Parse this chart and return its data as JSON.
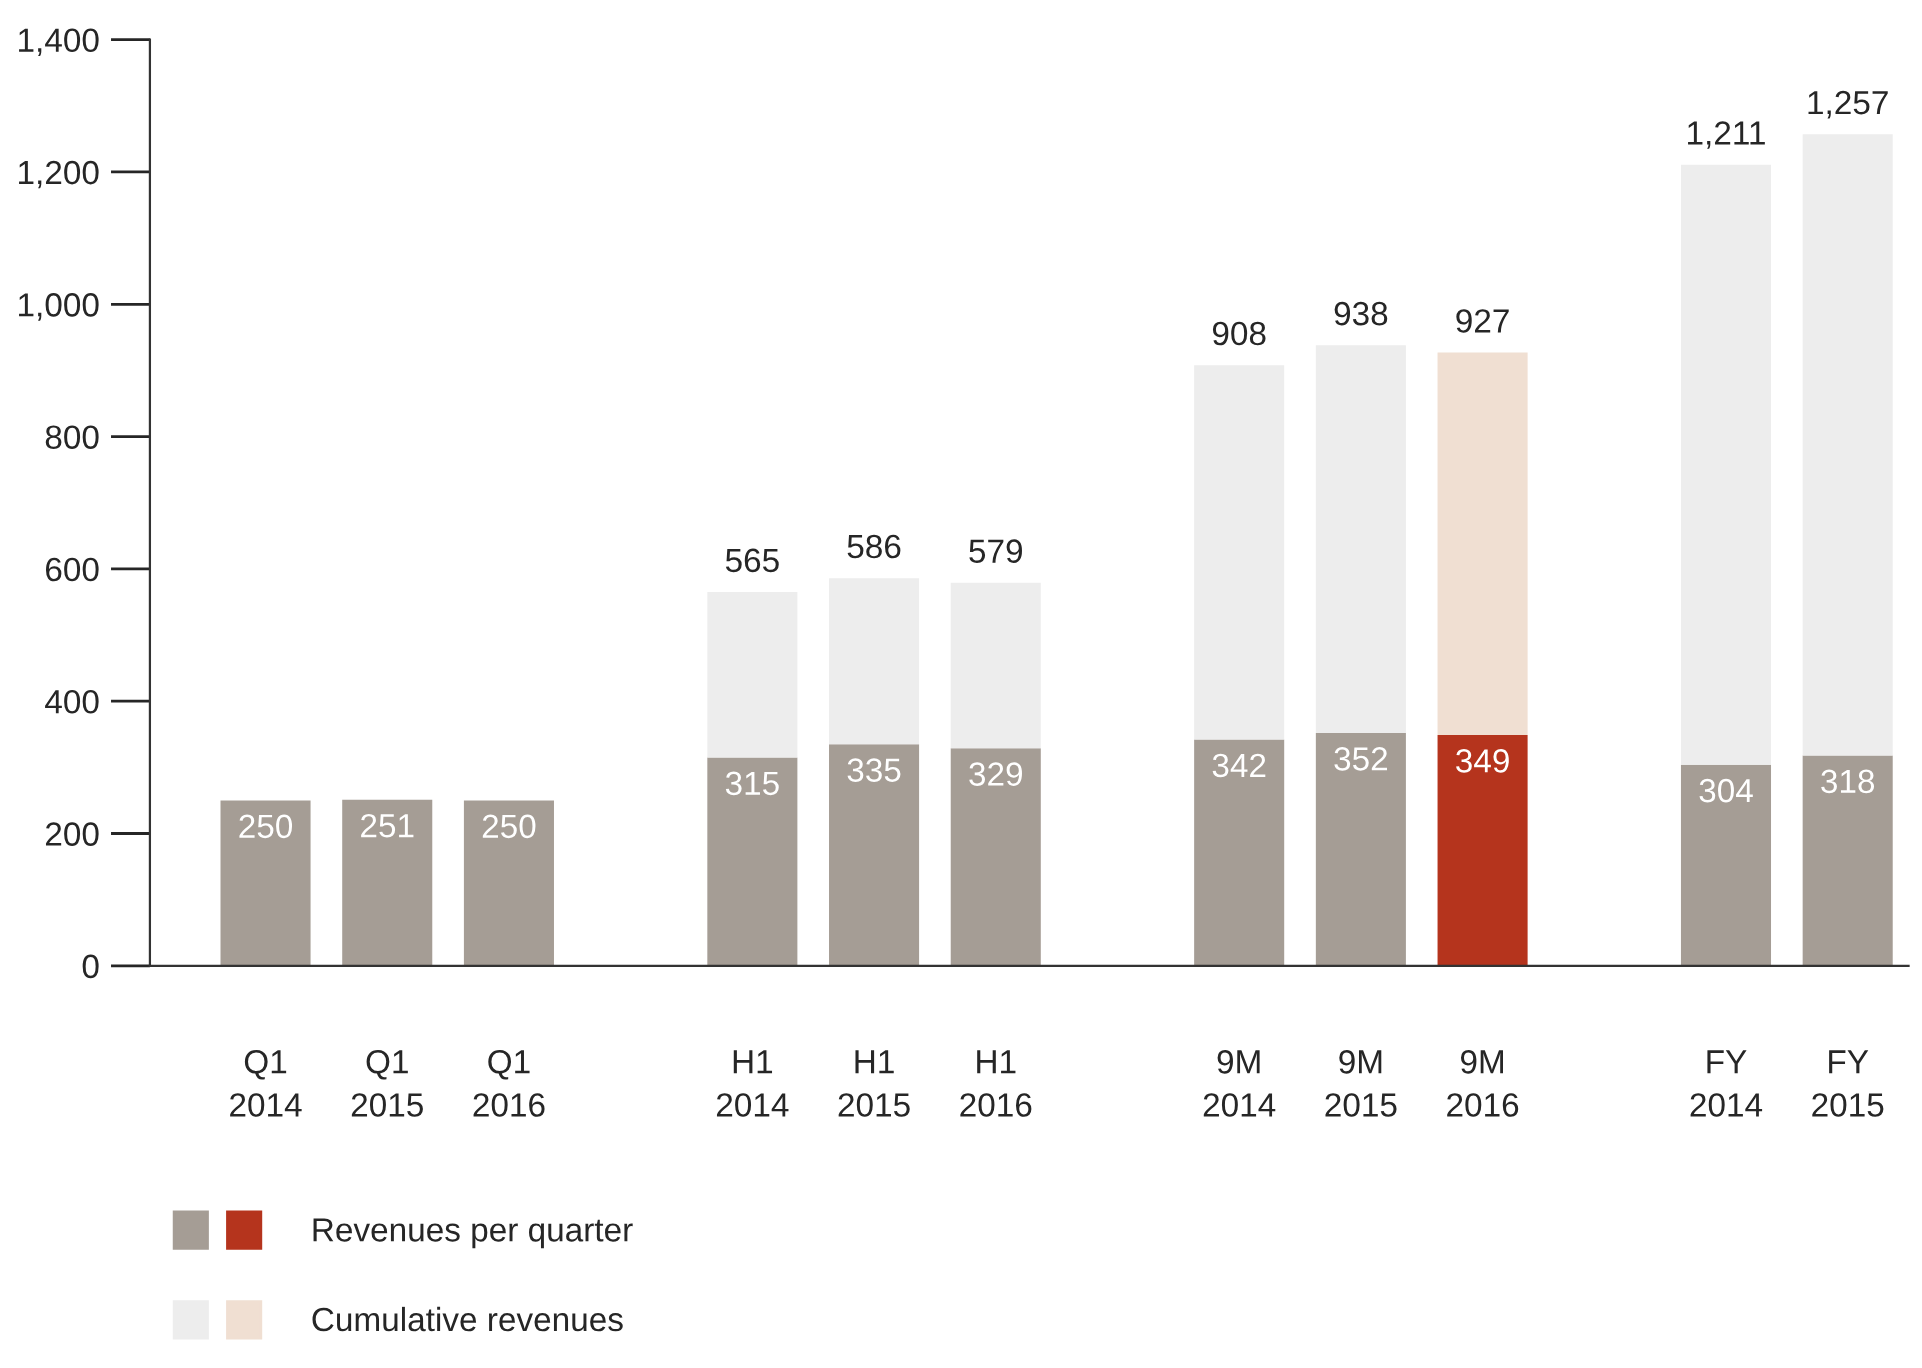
{
  "chart_data": {
    "type": "bar",
    "stacked": true,
    "categories": [
      "Q1\n2014",
      "Q1\n2015",
      "Q1\n2016",
      null,
      "H1\n2014",
      "H1\n2015",
      "H1\n2016",
      null,
      "9M\n2014",
      "9M\n2015",
      "9M\n2016",
      null,
      "FY\n2014",
      "FY\n2015"
    ],
    "series": [
      {
        "name": "Revenues per quarter",
        "colors": [
          "#a59d95",
          "#a59d95",
          "#a59d95",
          null,
          "#a59d95",
          "#a59d95",
          "#a59d95",
          null,
          "#a59d95",
          "#a59d95",
          "#b5341d",
          null,
          "#a59d95",
          "#a59d95"
        ],
        "values": [
          250,
          251,
          250,
          null,
          315,
          335,
          329,
          null,
          342,
          352,
          349,
          null,
          304,
          318
        ],
        "value_labels": [
          "250",
          "251",
          "250",
          null,
          "315",
          "335",
          "329",
          null,
          "342",
          "352",
          "349",
          null,
          "304",
          "318"
        ]
      },
      {
        "name": "Cumulative revenues",
        "colors": [
          null,
          null,
          null,
          null,
          "#ededed",
          "#ededed",
          "#ededed",
          null,
          "#ededed",
          "#ededed",
          "#f0dfd2",
          null,
          "#ededed",
          "#ededed"
        ],
        "values": [
          null,
          null,
          null,
          null,
          250,
          251,
          250,
          null,
          566,
          586,
          578,
          null,
          907,
          939
        ]
      }
    ],
    "totals": [
      null,
      null,
      null,
      null,
      "565",
      "586",
      "579",
      null,
      "908",
      "938",
      "927",
      null,
      "1,211",
      "1,257"
    ],
    "ylim": [
      0,
      1400
    ],
    "yticks": [
      0,
      200,
      400,
      600,
      800,
      {
        "value": 1000,
        "label": "1,000"
      },
      {
        "value": 1200,
        "label": "1,200"
      },
      {
        "value": 1400,
        "label": "1,400"
      }
    ],
    "grid": false,
    "legend": "bottom left"
  }
}
